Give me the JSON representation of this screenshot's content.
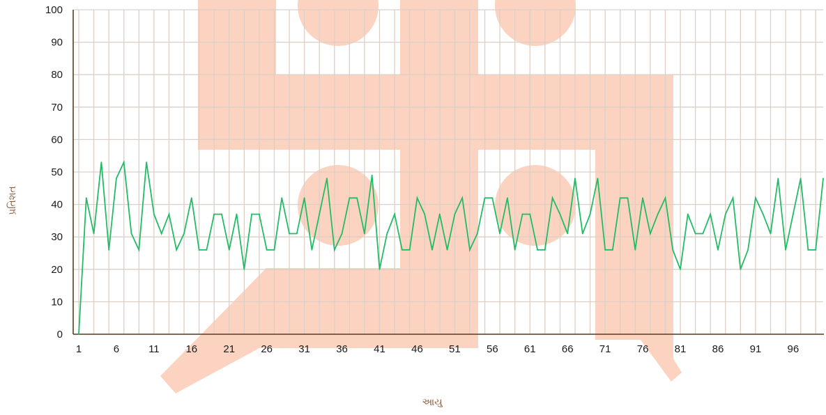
{
  "colors": {
    "series": "#22bb66",
    "grid": "#dccfc6",
    "axis": "#5a3a1e",
    "watermark": "#fbd3c0"
  },
  "watermark_icon": "swastika-watermark-icon",
  "chart_data": {
    "type": "line",
    "xlabel": "આયુ",
    "ylabel": "પ્રતિશત",
    "ylim": [
      0,
      100
    ],
    "yticks": [
      0,
      10,
      20,
      30,
      40,
      50,
      60,
      70,
      80,
      90,
      100
    ],
    "xticks": [
      1,
      6,
      11,
      16,
      21,
      26,
      31,
      36,
      41,
      46,
      51,
      56,
      61,
      66,
      71,
      76,
      81,
      86,
      91,
      96
    ],
    "xlim": [
      1,
      100
    ],
    "grid": true,
    "x": [
      1,
      2,
      3,
      4,
      5,
      6,
      7,
      8,
      9,
      10,
      11,
      12,
      13,
      14,
      15,
      16,
      17,
      18,
      19,
      20,
      21,
      22,
      23,
      24,
      25,
      26,
      27,
      28,
      29,
      30,
      31,
      32,
      33,
      34,
      35,
      36,
      37,
      38,
      39,
      40,
      41,
      42,
      43,
      44,
      45,
      46,
      47,
      48,
      49,
      50,
      51,
      52,
      53,
      54,
      55,
      56,
      57,
      58,
      59,
      60,
      61,
      62,
      63,
      64,
      65,
      66,
      67,
      68,
      69,
      70,
      71,
      72,
      73,
      74,
      75,
      76,
      77,
      78,
      79,
      80,
      81,
      82,
      83,
      84,
      85,
      86,
      87,
      88,
      89,
      90,
      91,
      92,
      93,
      94,
      95,
      96,
      97,
      98,
      99,
      100
    ],
    "series": [
      {
        "values": [
          0,
          42,
          31,
          53,
          26,
          48,
          53,
          31,
          26,
          53,
          37,
          31,
          37,
          26,
          31,
          42,
          26,
          26,
          37,
          37,
          26,
          37,
          20,
          37,
          37,
          26,
          26,
          42,
          31,
          31,
          42,
          26,
          37,
          48,
          26,
          31,
          42,
          42,
          31,
          49,
          20,
          31,
          37,
          26,
          26,
          42,
          37,
          26,
          37,
          26,
          37,
          42,
          26,
          31,
          42,
          42,
          31,
          42,
          26,
          37,
          37,
          26,
          26,
          42,
          37,
          31,
          48,
          31,
          37,
          48,
          26,
          26,
          42,
          42,
          26,
          42,
          31,
          37,
          42,
          26,
          20,
          37,
          31,
          31,
          37,
          26,
          37,
          42,
          20,
          26,
          42,
          37,
          31,
          48,
          26,
          37,
          48,
          26,
          26,
          48
        ]
      }
    ]
  }
}
